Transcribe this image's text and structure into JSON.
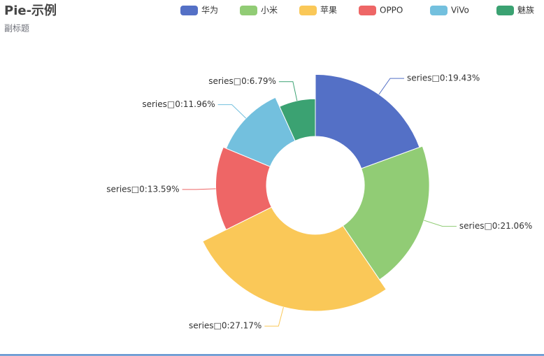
{
  "chart_data": {
    "type": "pie",
    "rose": true,
    "title": "Pie-示例",
    "subtitle": "副标题",
    "categories": [
      "华为",
      "小米",
      "苹果",
      "OPPO",
      "ViVo",
      "魅族"
    ],
    "values": [
      19.43,
      21.06,
      27.17,
      13.59,
      11.96,
      6.79
    ],
    "value_labels": [
      "series□0:19.43%",
      "series□0:21.06%",
      "series□0:27.17%",
      "series□0:13.59%",
      "series□0:11.96%",
      "series□0:6.79%"
    ],
    "colors": [
      "#5470c6",
      "#91cc75",
      "#fac858",
      "#ee6666",
      "#73c0de",
      "#3ba272"
    ]
  }
}
